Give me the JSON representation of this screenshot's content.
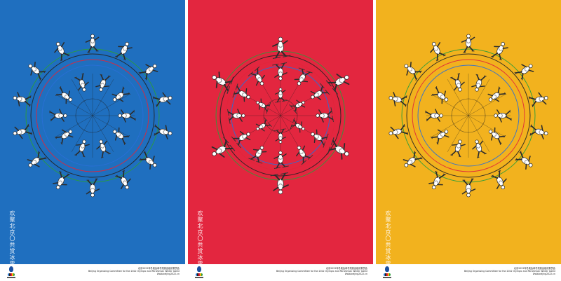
{
  "posters": [
    {
      "theme": "speed-skating",
      "background": "#1f6fbf",
      "vertical_title": "欢聚北京〇共赏冰雪",
      "footer_lines": [
        "北京2022年冬奥会和冬残奥会组织委员会",
        "Beijing Organising Committee for the 2022 Olympic and Paralympic Winter Games",
        "www.beijing2022.cn"
      ]
    },
    {
      "theme": "freestyle-skiing",
      "background": "#e3263f",
      "vertical_title": "欢聚北京〇共赏冰雪",
      "footer_lines": [
        "北京2022年冬奥会和冬残奥会组织委员会",
        "Beijing Organising Committee for the 2022 Olympic and Paralympic Winter Games",
        "www.beijing2022.cn"
      ]
    },
    {
      "theme": "figure-skating",
      "background": "#f2b21e",
      "vertical_title": "欢聚北京〇共赏冰雪",
      "footer_lines": [
        "北京2022年冬奥会和冬残奥会组织委员会",
        "Beijing Organising Committee for the 2022 Olympic and Paralympic Winter Games",
        "www.beijing2022.cn"
      ]
    }
  ],
  "ring_colors": [
    "#2a6fd6",
    "#e0263b",
    "#222222",
    "#2a9d3a",
    "#f5b400"
  ],
  "figure_colors": {
    "suit": "#ffffff",
    "outline": "#2b2b2b",
    "shade": "#9a9a9a"
  }
}
